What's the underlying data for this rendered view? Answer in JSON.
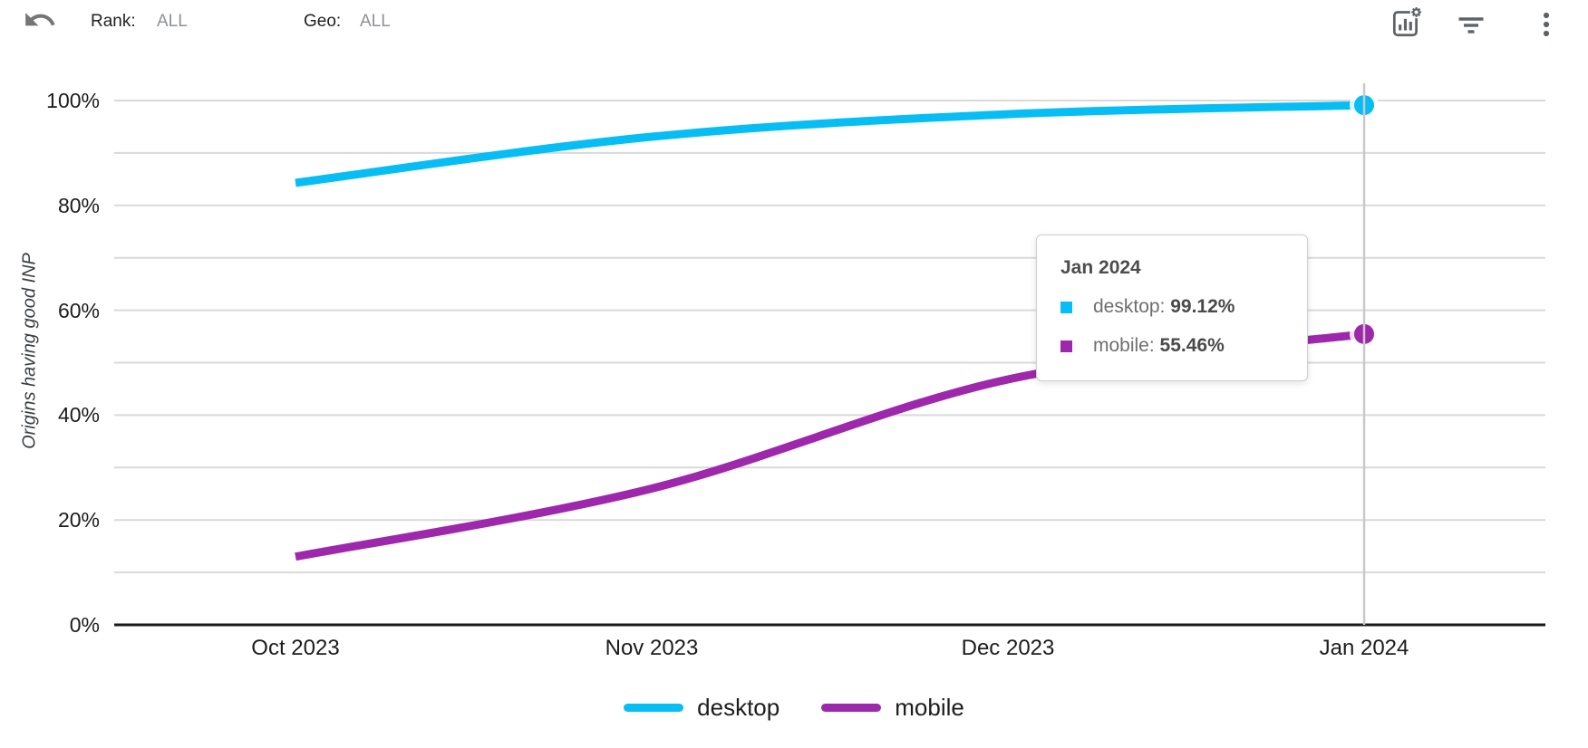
{
  "toolbar": {
    "rank_label": "Rank:",
    "rank_value": "ALL",
    "geo_label": "Geo:",
    "geo_value": "ALL",
    "icons": [
      "undo-icon",
      "chart-settings-icon",
      "filter-icon",
      "more-vert-icon"
    ],
    "icon_color": "#5f6368",
    "undo_color": "#757575"
  },
  "chart_data": {
    "type": "line",
    "categories": [
      "Oct 2023",
      "Nov 2023",
      "Dec 2023",
      "Jan 2024"
    ],
    "series": [
      {
        "name": "desktop",
        "color": "#06bdf4",
        "values": [
          84.3,
          93.1,
          97.4,
          99.12
        ]
      },
      {
        "name": "mobile",
        "color": "#9e28ac",
        "values": [
          13.0,
          26.0,
          46.8,
          55.46
        ]
      }
    ],
    "title": "",
    "xlabel": "",
    "ylabel": "Origins having good INP",
    "ylim": [
      0,
      100
    ],
    "yticks": [
      "0%",
      "20%",
      "40%",
      "60%",
      "80%",
      "100%"
    ],
    "grid": true,
    "gridline_step_pct": 10,
    "legend_position": "bottom",
    "highlighted_category": "Jan 2024",
    "smoothed": true
  },
  "tooltip": {
    "title": "Jan 2024",
    "rows": [
      {
        "label": "desktop",
        "value": "99.12%",
        "color": "#06bdf4"
      },
      {
        "label": "mobile",
        "value": "55.46%",
        "color": "#9e28ac"
      }
    ]
  },
  "legend": {
    "items": [
      {
        "label": "desktop",
        "color": "#06bdf4"
      },
      {
        "label": "mobile",
        "color": "#9e28ac"
      }
    ]
  },
  "colors": {
    "gridline": "#d9d9d9",
    "axis": "#1a1a1a",
    "crosshair": "#c9c9c9"
  }
}
